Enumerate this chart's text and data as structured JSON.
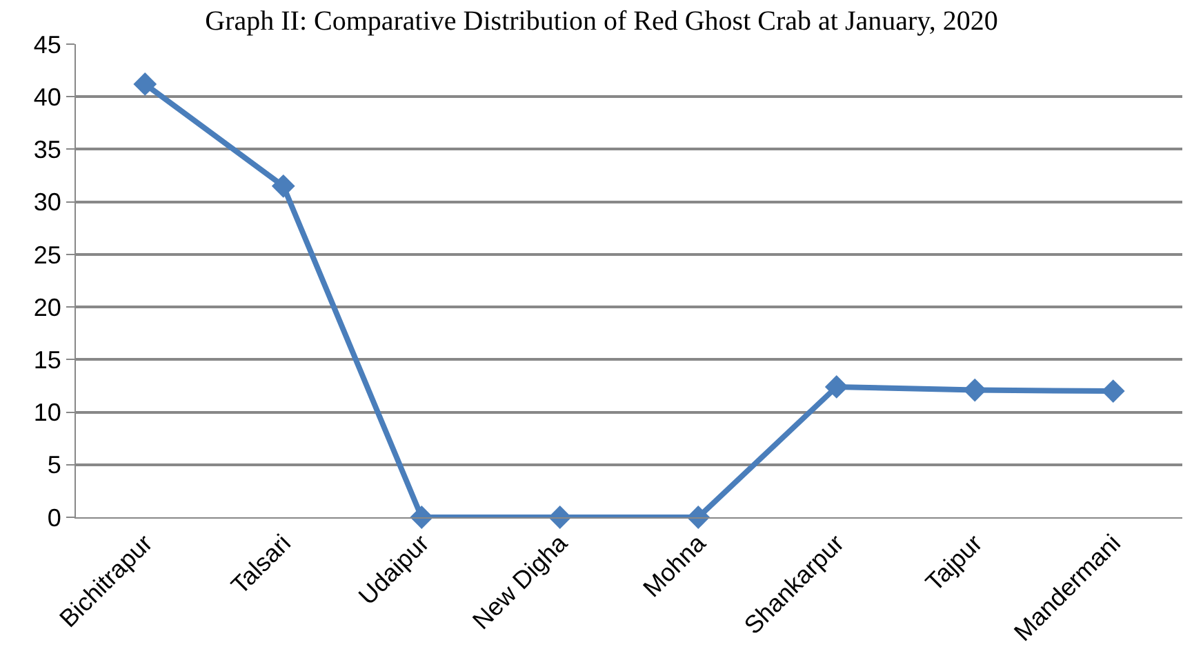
{
  "chart_data": {
    "type": "line",
    "title": "Graph II: Comparative Distribution of Red Ghost Crab at January, 2020",
    "categories": [
      "Bichitrapur",
      "Talsari",
      "Udaipur",
      "New Digha",
      "Mohna",
      "Shankarpur",
      "Tajpur",
      "Mandermani"
    ],
    "series": [
      {
        "color": "#4a7ebb",
        "values": [
          41.2,
          31.5,
          0,
          0,
          0,
          12.4,
          12.1,
          12.0
        ]
      }
    ],
    "ylim": [
      0,
      45
    ],
    "yticks": [
      0,
      5,
      10,
      15,
      20,
      25,
      30,
      35,
      40,
      45
    ],
    "grid": "y",
    "marker": "diamond",
    "line_style": "solid"
  }
}
